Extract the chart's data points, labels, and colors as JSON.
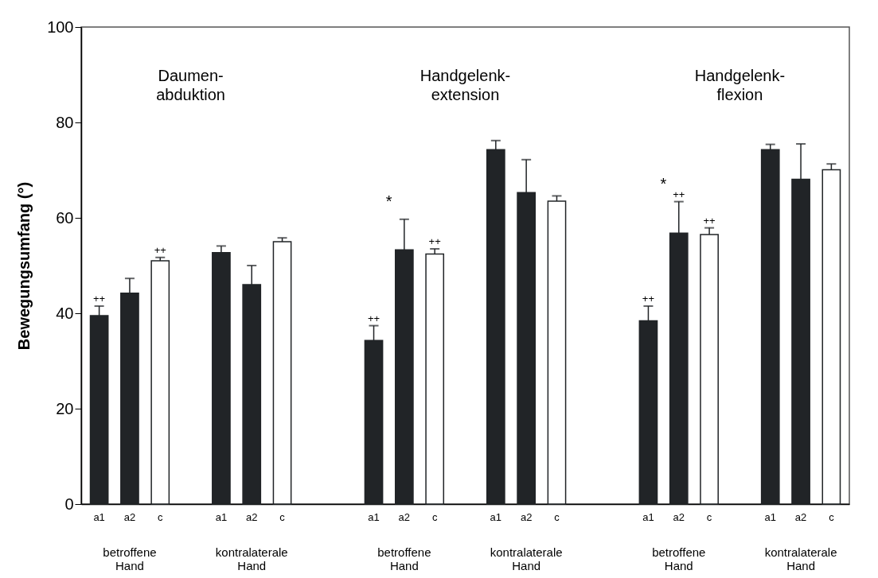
{
  "chart_data": {
    "type": "bar",
    "ylabel": "Bewegungsumfang (°)",
    "categories": [
      "a1",
      "a2",
      "c",
      "a1",
      "a2",
      "c",
      "a1",
      "a2",
      "c",
      "a1",
      "a2",
      "c",
      "a1",
      "a2",
      "c",
      "a1",
      "a2",
      "c"
    ],
    "values": [
      39.5,
      44.2,
      51.0,
      52.7,
      46.0,
      55.0,
      34.3,
      53.3,
      52.4,
      74.3,
      65.3,
      63.5,
      38.4,
      56.8,
      56.5,
      74.3,
      68.1,
      70.1
    ],
    "errors": [
      [
        39.5,
        41.5
      ],
      [
        44.2,
        47.3
      ],
      [
        51.0,
        51.7
      ],
      [
        52.7,
        54.1
      ],
      [
        46.0,
        50.0
      ],
      [
        55.0,
        55.8
      ],
      [
        34.3,
        37.4
      ],
      [
        53.3,
        59.7
      ],
      [
        52.4,
        53.5
      ],
      [
        74.3,
        76.2
      ],
      [
        65.3,
        72.2
      ],
      [
        63.5,
        64.6
      ],
      [
        38.4,
        41.5
      ],
      [
        56.8,
        63.4
      ],
      [
        56.5,
        57.9
      ],
      [
        74.3,
        75.4
      ],
      [
        68.1,
        75.5
      ],
      [
        70.1,
        71.3
      ]
    ],
    "value_labels": [
      "++",
      null,
      "++",
      null,
      null,
      null,
      "++",
      null,
      "++",
      null,
      null,
      null,
      "++",
      "++",
      "++",
      null,
      null,
      null
    ],
    "colors": [
      "#212427",
      "#212427",
      "#ffffff",
      "#212427",
      "#212427",
      "#ffffff",
      "#212427",
      "#212427",
      "#ffffff",
      "#212427",
      "#212427",
      "#ffffff",
      "#212427",
      "#212427",
      "#ffffff",
      "#212427",
      "#212427",
      "#ffffff"
    ],
    "ylim": [
      0,
      100
    ],
    "yticks": [
      0,
      20,
      40,
      60,
      80,
      100
    ],
    "annotations": [
      "Daumen-\nabduktion",
      "Handgelenk-\nextension",
      "Handgelenk-\nflexion",
      "betroffene\nHand",
      "kontralaterale\nHand",
      "betroffene\nHand",
      "kontralaterale\nHand",
      "betroffene\nHand",
      "kontralaterale\nHand",
      "*",
      "*"
    ]
  }
}
